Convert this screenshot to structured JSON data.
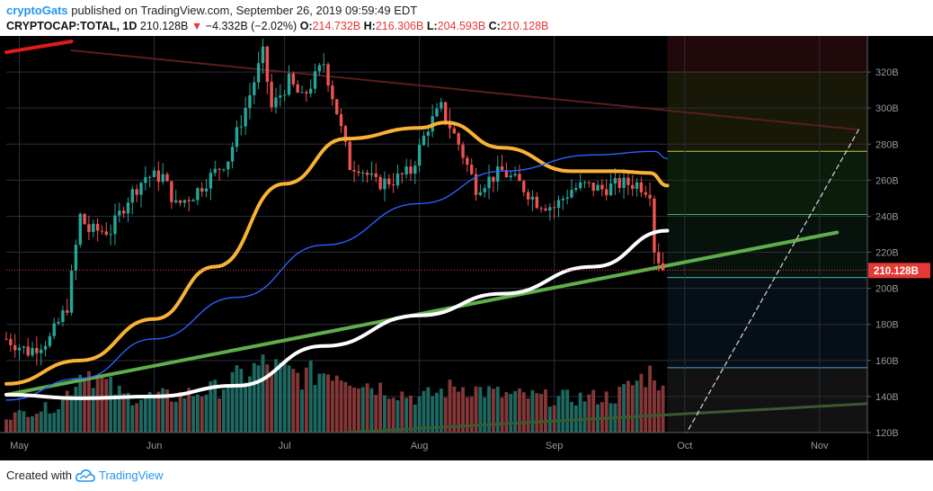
{
  "header": {
    "user": "cryptoGats",
    "published": " published on TradingView.com, September 26, 2019 09:59:49 EDT",
    "symbol": "CRYPTOCAP:TOTAL, 1D",
    "last": "210.128B",
    "change_arrow": "▼",
    "change": "−4.332B (−2.02%)",
    "o_label": "O:",
    "o_value": "214.732B",
    "h_label": "H:",
    "h_value": "216.306B",
    "l_label": "L:",
    "l_value": "204.593B",
    "c_label": "C:",
    "c_value": "210.128B"
  },
  "footer": {
    "created_with": "Created with",
    "brand": "TradingView",
    "logo_icon": "tradingview-cloud-icon"
  },
  "colors": {
    "background": "#000000",
    "bull": "#26a69a",
    "bear": "#ef5350",
    "ma_orange": "#f9b233",
    "ma_white": "#ffffff",
    "ma_blue": "#2962ff",
    "trend_green": "#5fae4a",
    "price_label": "#e53935"
  },
  "chart_data": {
    "type": "candlestick",
    "title": "",
    "timeframe": "1D",
    "xlabel": "",
    "ylabel": "",
    "x_ticks": [
      "May",
      "Jun",
      "Jul",
      "Aug",
      "Sep",
      "Oct",
      "Nov"
    ],
    "x_tick_dates": [
      "2019-05-01",
      "2019-06-01",
      "2019-07-01",
      "2019-08-01",
      "2019-09-01",
      "2019-10-01",
      "2019-11-01"
    ],
    "x_range": [
      "2019-04-28",
      "2019-11-12"
    ],
    "y_ticks": [
      "320B",
      "300B",
      "280B",
      "260B",
      "240B",
      "220B",
      "200B",
      "180B",
      "160B",
      "140B",
      "120B"
    ],
    "ylim": [
      120,
      340
    ],
    "y_unit": "B",
    "last_price_label": "210.128B",
    "last_price": 210.128,
    "candle_anchors": [
      [
        "2019-04-28",
        172
      ],
      [
        "2019-05-03",
        165
      ],
      [
        "2019-05-08",
        172
      ],
      [
        "2019-05-12",
        190
      ],
      [
        "2019-05-15",
        240
      ],
      [
        "2019-05-17",
        232
      ],
      [
        "2019-05-22",
        232
      ],
      [
        "2019-05-26",
        250
      ],
      [
        "2019-05-30",
        262
      ],
      [
        "2019-06-03",
        262
      ],
      [
        "2019-06-06",
        246
      ],
      [
        "2019-06-10",
        252
      ],
      [
        "2019-06-14",
        262
      ],
      [
        "2019-06-18",
        272
      ],
      [
        "2019-06-22",
        300
      ],
      [
        "2019-06-26",
        330
      ],
      [
        "2019-06-28",
        300
      ],
      [
        "2019-07-02",
        315
      ],
      [
        "2019-07-05",
        305
      ],
      [
        "2019-07-10",
        325
      ],
      [
        "2019-07-13",
        298
      ],
      [
        "2019-07-16",
        268
      ],
      [
        "2019-07-18",
        268
      ],
      [
        "2019-07-22",
        258
      ],
      [
        "2019-07-26",
        260
      ],
      [
        "2019-07-30",
        265
      ],
      [
        "2019-08-03",
        290
      ],
      [
        "2019-08-06",
        300
      ],
      [
        "2019-08-10",
        280
      ],
      [
        "2019-08-14",
        256
      ],
      [
        "2019-08-18",
        262
      ],
      [
        "2019-08-20",
        265
      ],
      [
        "2019-08-24",
        258
      ],
      [
        "2019-08-28",
        248
      ],
      [
        "2019-09-01",
        245
      ],
      [
        "2019-09-05",
        255
      ],
      [
        "2019-09-08",
        257
      ],
      [
        "2019-09-12",
        255
      ],
      [
        "2019-09-16",
        258
      ],
      [
        "2019-09-20",
        258
      ],
      [
        "2019-09-23",
        254
      ],
      [
        "2019-09-24",
        222
      ],
      [
        "2019-09-26",
        210.128
      ]
    ],
    "moving_averages": [
      {
        "color": "orange",
        "points": [
          [
            "2019-04-28",
            147
          ],
          [
            "2019-05-15",
            160
          ],
          [
            "2019-06-01",
            183
          ],
          [
            "2019-06-15",
            212
          ],
          [
            "2019-07-01",
            258
          ],
          [
            "2019-07-15",
            283
          ],
          [
            "2019-08-01",
            289
          ],
          [
            "2019-08-07",
            292
          ],
          [
            "2019-08-20",
            278
          ],
          [
            "2019-09-05",
            265
          ],
          [
            "2019-09-15",
            265
          ],
          [
            "2019-09-23",
            264
          ],
          [
            "2019-09-27",
            257
          ]
        ]
      },
      {
        "color": "blue",
        "points": [
          [
            "2019-04-28",
            138
          ],
          [
            "2019-05-15",
            150
          ],
          [
            "2019-06-01",
            172
          ],
          [
            "2019-06-20",
            195
          ],
          [
            "2019-07-10",
            224
          ],
          [
            "2019-08-01",
            247
          ],
          [
            "2019-08-20",
            265
          ],
          [
            "2019-09-10",
            274
          ],
          [
            "2019-09-24",
            276
          ],
          [
            "2019-09-27",
            272
          ]
        ]
      },
      {
        "color": "white",
        "points": [
          [
            "2019-04-28",
            141
          ],
          [
            "2019-05-15",
            139
          ],
          [
            "2019-06-01",
            140
          ],
          [
            "2019-06-20",
            146
          ],
          [
            "2019-07-10",
            168
          ],
          [
            "2019-08-01",
            185
          ],
          [
            "2019-08-20",
            197
          ],
          [
            "2019-09-10",
            212
          ],
          [
            "2019-09-27",
            232
          ]
        ]
      }
    ],
    "trend_lines": [
      {
        "color": "green",
        "from": [
          "2019-04-28",
          141
        ],
        "to": [
          "2019-11-05",
          231
        ]
      },
      {
        "color": "red",
        "from": [
          "2019-04-28",
          331
        ],
        "to": [
          "2019-05-13",
          337
        ]
      },
      {
        "color": "dark-red",
        "from": [
          "2019-05-13",
          332
        ],
        "to": [
          "2019-11-10",
          288
        ]
      },
      {
        "color": "dark-green",
        "from": [
          "2019-07-15",
          120
        ],
        "to": [
          "2019-11-12",
          136
        ]
      },
      {
        "color": "white-dashed",
        "from": [
          "2019-10-01",
          118
        ],
        "to": [
          "2019-11-10",
          288
        ]
      }
    ],
    "fib_levels": [
      320,
      276,
      241,
      206,
      156
    ],
    "volume_anchors": [
      [
        "2019-04-28",
        18
      ],
      [
        "2019-05-10",
        30
      ],
      [
        "2019-05-16",
        72
      ],
      [
        "2019-05-25",
        40
      ],
      [
        "2019-06-05",
        40
      ],
      [
        "2019-06-15",
        48
      ],
      [
        "2019-06-26",
        75
      ],
      [
        "2019-07-05",
        62
      ],
      [
        "2019-07-12",
        70
      ],
      [
        "2019-07-20",
        55
      ],
      [
        "2019-08-01",
        38
      ],
      [
        "2019-08-10",
        52
      ],
      [
        "2019-08-20",
        42
      ],
      [
        "2019-09-01",
        38
      ],
      [
        "2019-09-15",
        40
      ],
      [
        "2019-09-24",
        70
      ],
      [
        "2019-09-26",
        45
      ]
    ]
  }
}
